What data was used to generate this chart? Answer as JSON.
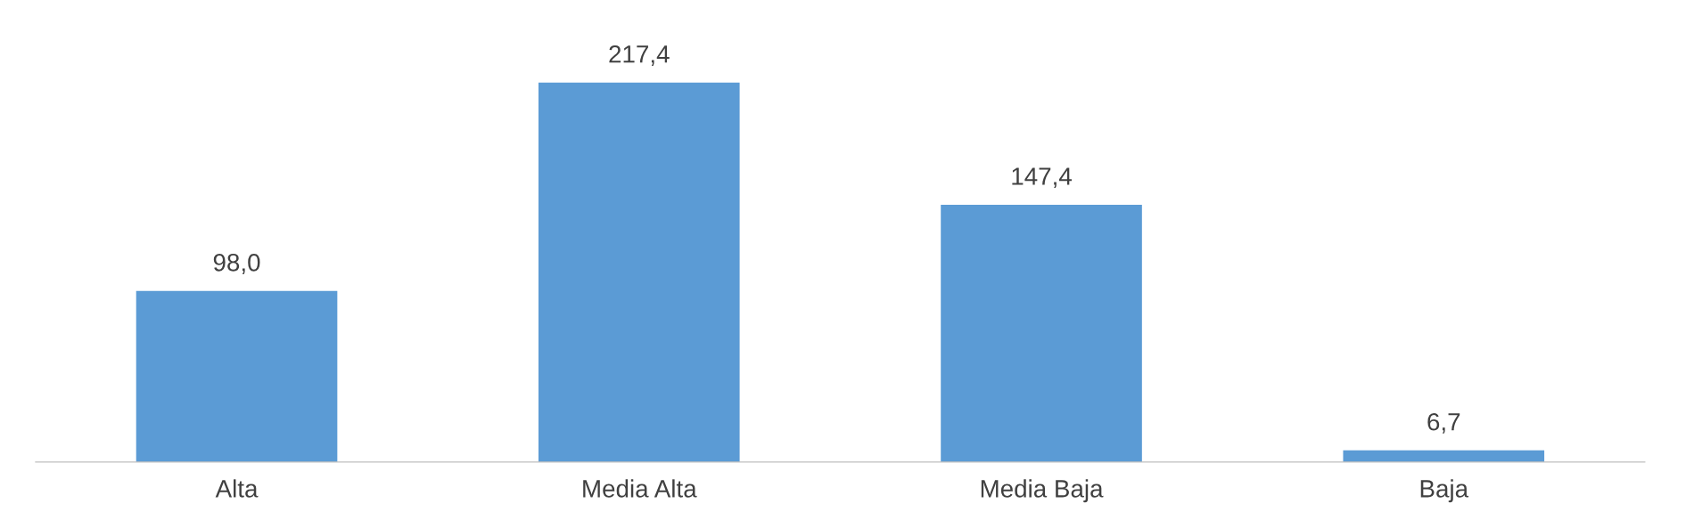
{
  "chart_data": {
    "type": "bar",
    "categories": [
      "Alta",
      "Media Alta",
      "Media Baja",
      "Baja"
    ],
    "values": [
      98.0,
      217.4,
      147.4,
      6.7
    ],
    "value_labels": [
      "98,0",
      "217,4",
      "147,4",
      "6,7"
    ],
    "color": "#5b9bd5",
    "grid": false,
    "legend": false
  }
}
